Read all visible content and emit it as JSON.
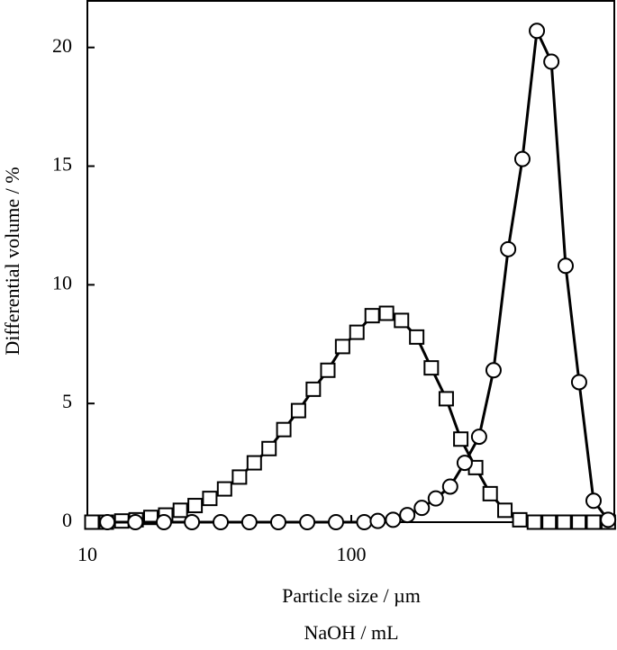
{
  "chart_data": {
    "type": "line",
    "xlabel": "Particle size / µm",
    "xlabel_2": "NaOH / mL",
    "ylabel": "Differential volume / %",
    "xscale": "log",
    "xlim": [
      10,
      1000
    ],
    "xticks": [
      10,
      100
    ],
    "ylim": [
      0,
      22
    ],
    "yticks": [
      0,
      5,
      10,
      15,
      20
    ],
    "series": [
      {
        "marker": "square",
        "color": "#000000",
        "x": [
          10.4,
          11.8,
          13.5,
          15.3,
          17.4,
          19.8,
          22.5,
          25.6,
          29.1,
          33.1,
          37.7,
          42.9,
          48.8,
          55.5,
          63.1,
          71.8,
          81.5,
          92.7,
          105,
          120,
          136,
          155,
          177,
          201,
          229,
          260,
          296,
          336,
          382,
          435,
          494,
          562,
          640,
          728,
          828,
          942
        ],
        "values": [
          0,
          0,
          0.05,
          0.1,
          0.2,
          0.3,
          0.5,
          0.7,
          1.0,
          1.4,
          1.9,
          2.5,
          3.1,
          3.9,
          4.7,
          5.6,
          6.4,
          7.4,
          8.0,
          8.7,
          8.8,
          8.5,
          7.8,
          6.5,
          5.2,
          3.5,
          2.3,
          1.2,
          0.5,
          0.1,
          0,
          0,
          0,
          0,
          0,
          0
        ]
      },
      {
        "marker": "circle",
        "color": "#000000",
        "x": [
          11.9,
          15.2,
          19.5,
          24.9,
          32.0,
          41.1,
          52.9,
          68.1,
          87.5,
          112,
          126,
          144,
          163,
          185,
          209,
          237,
          269,
          305,
          346,
          393,
          445,
          505,
          573,
          649,
          730,
          828,
          940
        ],
        "values": [
          0,
          0,
          0,
          0,
          0,
          0,
          0,
          0,
          0,
          0,
          0.05,
          0.1,
          0.3,
          0.6,
          1.0,
          1.5,
          2.5,
          3.6,
          6.4,
          11.5,
          15.3,
          20.7,
          19.4,
          10.8,
          5.9,
          0.9,
          0.1
        ]
      }
    ]
  }
}
